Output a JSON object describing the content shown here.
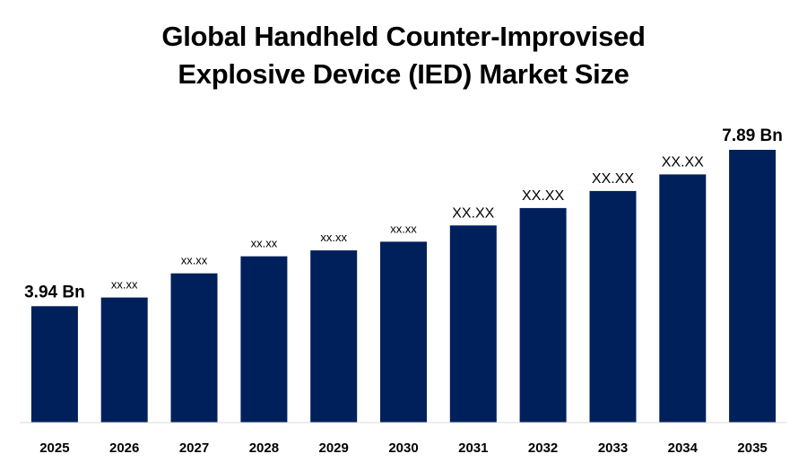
{
  "chart_data": {
    "type": "bar",
    "title_lines": [
      "Global Handheld Counter-Improvised",
      "Explosive Device (IED) Market Size"
    ],
    "categories": [
      "2025",
      "2026",
      "2027",
      "2028",
      "2029",
      "2030",
      "2031",
      "2032",
      "2033",
      "2034",
      "2035"
    ],
    "values": [
      3.94,
      4.16,
      4.77,
      5.2,
      5.35,
      5.57,
      5.98,
      6.42,
      6.85,
      7.27,
      7.89
    ],
    "data_labels": [
      "3.94 Bn",
      "xx.xx",
      "xx.xx",
      "xx.xx",
      "xx.xx",
      "xx.xx",
      "XX.XX",
      "XX.XX",
      "XX.XX",
      "XX.XX",
      "7.89 Bn"
    ],
    "xlabel": "",
    "ylabel": "",
    "ylim": [
      1.0,
      8.0
    ],
    "grid": false,
    "legend": "none",
    "colors": {
      "bar": "#00205C",
      "axis": "#d9d9d9",
      "text": "#000000"
    }
  }
}
